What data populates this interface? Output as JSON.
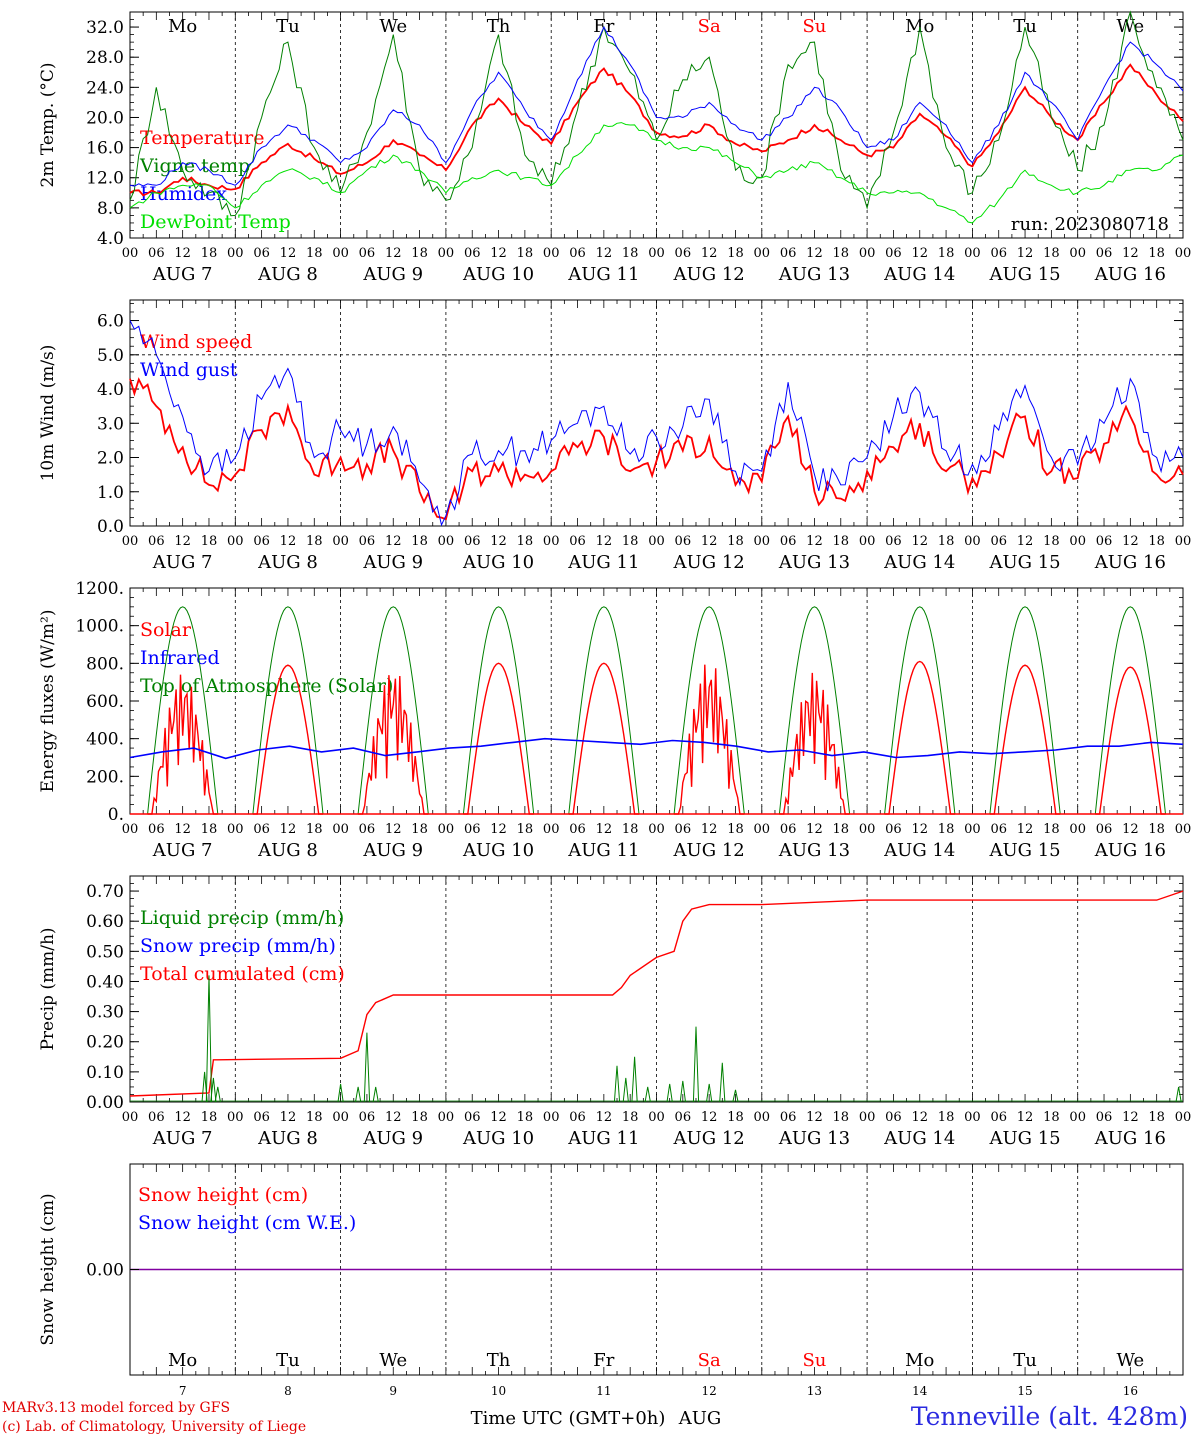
{
  "chart_data": [
    {
      "type": "line",
      "panel": "temperature",
      "ylabel": "2m Temp. (°C)",
      "ylim": [
        4.0,
        34.0
      ],
      "yticks": [
        "4.0",
        "8.0",
        "12.0",
        "16.0",
        "20.0",
        "24.0",
        "28.0",
        "32.0"
      ],
      "x": [
        0,
        6,
        12,
        18,
        24,
        30,
        36,
        42,
        48,
        54,
        60,
        66,
        72,
        78,
        84,
        90,
        96,
        102,
        108,
        114,
        120,
        126,
        132,
        138,
        144,
        150,
        156,
        162,
        168,
        174,
        180,
        186,
        192,
        198,
        204,
        210,
        216,
        222,
        228,
        234,
        240
      ],
      "series": [
        {
          "name": "Temperature",
          "color": "#ff0000",
          "values": [
            10,
            10,
            12,
            11,
            10.5,
            14,
            16.5,
            14.5,
            12.5,
            14,
            17,
            15,
            13,
            19,
            22.5,
            19,
            16.5,
            22,
            26.5,
            23,
            18,
            17.5,
            19,
            16.5,
            15.5,
            17,
            19,
            17,
            15,
            16,
            20.5,
            17.5,
            13.5,
            18,
            24,
            20,
            17,
            22,
            27,
            23,
            19.5
          ]
        },
        {
          "name": "Vigne temp",
          "color": "#008000",
          "values": [
            9,
            24,
            13,
            10,
            7,
            20,
            30,
            16,
            10,
            18,
            31,
            13,
            9,
            16,
            31,
            15,
            11,
            21,
            32,
            26,
            17,
            25,
            28,
            13,
            12,
            27,
            30,
            13,
            8,
            18,
            32,
            16,
            10,
            17,
            32,
            20,
            13,
            19,
            34,
            24,
            17
          ]
        },
        {
          "name": "Humidex",
          "color": "#0000ff",
          "values": [
            11,
            11,
            14,
            13,
            11,
            16,
            19,
            17,
            14,
            16,
            21,
            19,
            14,
            21,
            26,
            21,
            17,
            25,
            32,
            27,
            20,
            20,
            22,
            19,
            17,
            20,
            24,
            21,
            16,
            17,
            22,
            19,
            14,
            19,
            26,
            22,
            17,
            24,
            30,
            27,
            23.5
          ]
        },
        {
          "name": "DewPoint Temp",
          "color": "#00e000",
          "values": [
            8,
            10,
            11,
            11,
            8,
            11,
            13,
            12,
            10,
            13,
            15,
            13,
            10,
            12,
            13,
            12,
            11,
            15,
            19,
            19,
            17,
            16,
            16,
            14,
            12,
            13,
            14,
            12,
            10,
            10,
            10,
            8,
            6,
            9,
            13,
            11,
            10,
            11,
            13,
            13,
            15
          ]
        }
      ],
      "annotation": "run: 2023080718"
    },
    {
      "type": "line",
      "panel": "wind",
      "ylabel": "10m Wind (m/s)",
      "ylim": [
        0.0,
        6.6
      ],
      "yticks": [
        "0.0",
        "1.0",
        "2.0",
        "3.0",
        "4.0",
        "5.0",
        "6.0"
      ],
      "x": [
        0,
        6,
        12,
        18,
        24,
        30,
        36,
        42,
        48,
        54,
        60,
        66,
        72,
        78,
        84,
        90,
        96,
        102,
        108,
        114,
        120,
        126,
        132,
        138,
        144,
        150,
        156,
        162,
        168,
        174,
        180,
        186,
        192,
        198,
        204,
        210,
        216,
        222,
        228,
        234,
        240
      ],
      "series": [
        {
          "name": "Wind speed",
          "color": "#ff0000",
          "values": [
            4.3,
            3.5,
            2.3,
            1.2,
            1.5,
            2.8,
            3.5,
            1.5,
            2.0,
            1.8,
            2.2,
            1.0,
            0.2,
            1.6,
            1.6,
            1.5,
            1.6,
            2.3,
            2.6,
            1.6,
            1.9,
            2.2,
            2.6,
            1.2,
            1.3,
            3.2,
            1.0,
            0.8,
            1.6,
            2.3,
            3.0,
            1.6,
            1.4,
            2.1,
            3.2,
            1.6,
            1.4,
            2.4,
            3.2,
            1.5,
            1.5
          ]
        },
        {
          "name": "Wind gust",
          "color": "#0000ff",
          "values": [
            6.0,
            5.0,
            3.2,
            1.6,
            2.0,
            3.7,
            4.6,
            2.0,
            2.8,
            2.4,
            2.9,
            1.3,
            0.3,
            2.1,
            2.2,
            2.2,
            2.5,
            3.0,
            3.5,
            2.1,
            2.6,
            2.9,
            3.7,
            1.6,
            1.6,
            4.2,
            1.5,
            1.2,
            2.0,
            3.2,
            3.9,
            2.2,
            1.8,
            2.8,
            4.1,
            2.0,
            1.8,
            3.0,
            4.3,
            2.0,
            2.0
          ]
        }
      ],
      "reference_line": 5.0
    },
    {
      "type": "line",
      "panel": "energy",
      "ylabel": "Energy fluxes (W/m²)",
      "ylim": [
        0,
        1200
      ],
      "yticks": [
        "0.",
        "200.",
        "400.",
        "600.",
        "800.",
        "1000.",
        "1200."
      ],
      "days": [
        "7",
        "8",
        "9",
        "10",
        "11",
        "12",
        "13",
        "14",
        "15",
        "16"
      ],
      "solar_peaks": [
        750,
        790,
        780,
        800,
        800,
        820,
        760,
        810,
        790,
        780
      ],
      "solar_cloudy": [
        true,
        false,
        true,
        false,
        false,
        true,
        true,
        false,
        false,
        false
      ],
      "toa_peak": 1100,
      "infrared_values": [
        300,
        330,
        350,
        295,
        340,
        360,
        330,
        350,
        310,
        330,
        350,
        360,
        380,
        400,
        390,
        380,
        370,
        390,
        380,
        360,
        330,
        340,
        310,
        330,
        300,
        310,
        330,
        320,
        330,
        340,
        360,
        360,
        380,
        370
      ],
      "series": [
        {
          "name": "Solar",
          "color": "#ff0000"
        },
        {
          "name": "Infrared",
          "color": "#0000ff"
        },
        {
          "name": "Top of Atmosphere (Solar)",
          "color": "#008000"
        }
      ]
    },
    {
      "type": "line",
      "panel": "precip",
      "ylabel": "Precip (mm/h)",
      "ylim": [
        0.0,
        0.75
      ],
      "yticks": [
        "0.00",
        "0.10",
        "0.20",
        "0.30",
        "0.40",
        "0.50",
        "0.60",
        "0.70"
      ],
      "cumulated_x": [
        0,
        18,
        19,
        20,
        48,
        52,
        54,
        56,
        60,
        66,
        96,
        110,
        112,
        114,
        120,
        124,
        126,
        128,
        132,
        144,
        168,
        210,
        234,
        240
      ],
      "cumulated_values": [
        0.02,
        0.03,
        0.14,
        0.14,
        0.145,
        0.17,
        0.29,
        0.33,
        0.355,
        0.355,
        0.355,
        0.355,
        0.38,
        0.42,
        0.48,
        0.5,
        0.6,
        0.64,
        0.655,
        0.655,
        0.67,
        0.67,
        0.67,
        0.7
      ],
      "liquid_spikes": [
        [
          17,
          0.1
        ],
        [
          18,
          0.42
        ],
        [
          19,
          0.08
        ],
        [
          20,
          0.05
        ],
        [
          48,
          0.06
        ],
        [
          52,
          0.05
        ],
        [
          54,
          0.23
        ],
        [
          56,
          0.05
        ],
        [
          111,
          0.12
        ],
        [
          113,
          0.08
        ],
        [
          115,
          0.15
        ],
        [
          118,
          0.05
        ],
        [
          123,
          0.06
        ],
        [
          126,
          0.07
        ],
        [
          129,
          0.25
        ],
        [
          132,
          0.06
        ],
        [
          135,
          0.13
        ],
        [
          138,
          0.04
        ],
        [
          239,
          0.05
        ]
      ],
      "series": [
        {
          "name": "Liquid precip (mm/h)",
          "color": "#008000"
        },
        {
          "name": "Snow precip (mm/h)",
          "color": "#0000ff"
        },
        {
          "name": "Total cumulated (cm)",
          "color": "#ff0000"
        }
      ]
    },
    {
      "type": "line",
      "panel": "snow",
      "ylabel": "Snow height (cm)",
      "yticks": [
        "0.00"
      ],
      "series": [
        {
          "name": "Snow height (cm)",
          "color": "#ff0000",
          "values": [
            0,
            0
          ]
        },
        {
          "name": "Snow height (cm W.E.)",
          "color": "#0000ff",
          "values": [
            0,
            0
          ]
        }
      ]
    }
  ],
  "days_top": [
    {
      "label": "Mo",
      "weekend": false
    },
    {
      "label": "Tu",
      "weekend": false
    },
    {
      "label": "We",
      "weekend": false
    },
    {
      "label": "Th",
      "weekend": false
    },
    {
      "label": "Fr",
      "weekend": false
    },
    {
      "label": "Sa",
      "weekend": true
    },
    {
      "label": "Su",
      "weekend": true
    },
    {
      "label": "Mo",
      "weekend": false
    },
    {
      "label": "Tu",
      "weekend": false
    },
    {
      "label": "We",
      "weekend": false
    }
  ],
  "hour_labels": [
    "00",
    "06",
    "12",
    "18"
  ],
  "final_hour_label": "00",
  "date_labels": [
    "AUG  7",
    "AUG  8",
    "AUG  9",
    "AUG 10",
    "AUG 11",
    "AUG 12",
    "AUG 13",
    "AUG 14",
    "AUG 15",
    "AUG 16"
  ],
  "bottom_day_numbers": [
    "7",
    "8",
    "9",
    "10",
    "11",
    "12",
    "13",
    "14",
    "15",
    "16"
  ],
  "xlabel": "Time UTC (GMT+0h)",
  "month_label": "AUG",
  "footer": {
    "credit_line_1": "MARv3.13 model forced by GFS",
    "credit_line_2": "(c) Lab. of Climatology, University of Liege",
    "station": "Tenneville (alt. 428m)"
  },
  "colors": {
    "weekday": "#000000",
    "weekend": "#ff0000",
    "axis": "#000000"
  }
}
